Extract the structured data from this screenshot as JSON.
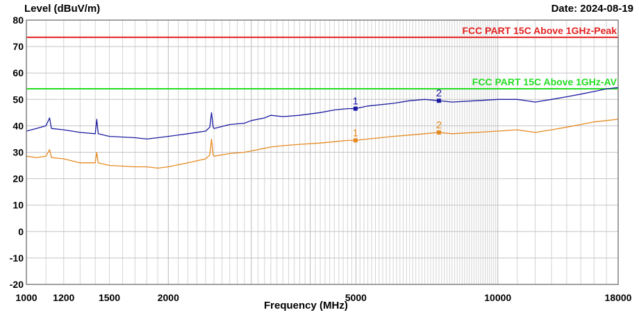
{
  "header": {
    "ylabel": "Level (dBuV/m)",
    "date": "Date: 2024-08-19"
  },
  "chart_data": {
    "type": "line",
    "title": "",
    "xlabel": "Frequency (MHz)",
    "ylabel": "Level (dBuV/m)",
    "xscale": "log",
    "xlim": [
      1000,
      18000
    ],
    "ylim": [
      -20,
      80
    ],
    "grid": true,
    "x_ticks": [
      1000,
      1200,
      1500,
      2000,
      5000,
      10000,
      18000
    ],
    "y_ticks": [
      80,
      70,
      60,
      50,
      40,
      30,
      20,
      10,
      0,
      -10,
      -20
    ],
    "limits": [
      {
        "name": "FCC PART 15C Above 1GHz-Peak",
        "value": 73.5,
        "color": "#e32020"
      },
      {
        "name": "FCC PART 15C Above 1GHz-AV",
        "value": 54,
        "color": "#22dd22"
      }
    ],
    "series": [
      {
        "color": "#1a1aa0",
        "x": [
          1000,
          1050,
          1100,
          1120,
          1130,
          1200,
          1300,
          1400,
          1410,
          1420,
          1500,
          1700,
          1800,
          1900,
          2000,
          2200,
          2400,
          2450,
          2470,
          2490,
          2500,
          2700,
          2900,
          3000,
          3200,
          3300,
          3500,
          3800,
          4200,
          4500,
          4800,
          4990,
          5300,
          6000,
          6500,
          7000,
          7500,
          8000,
          9000,
          10000,
          11000,
          12000,
          13000,
          14000,
          15000,
          16000,
          17000,
          18000
        ],
        "y": [
          38,
          39,
          40,
          43,
          39,
          38.5,
          37.5,
          37,
          42.5,
          37,
          36,
          35.5,
          35,
          35.5,
          36,
          37,
          38,
          39.5,
          45,
          39.5,
          39,
          40.5,
          41,
          42,
          43,
          44,
          43.5,
          44,
          45,
          46,
          46.5,
          46.5,
          47.5,
          48.5,
          49.5,
          50,
          49.5,
          49,
          49.5,
          50,
          50,
          49,
          50,
          51,
          52,
          53,
          54,
          54.5
        ]
      },
      {
        "color": "#e68a20",
        "x": [
          1000,
          1050,
          1100,
          1120,
          1130,
          1200,
          1300,
          1400,
          1410,
          1420,
          1500,
          1700,
          1800,
          1900,
          2000,
          2200,
          2400,
          2450,
          2470,
          2490,
          2500,
          2700,
          2900,
          3000,
          3200,
          3300,
          3500,
          3800,
          4200,
          4500,
          4800,
          4990,
          5300,
          6000,
          6500,
          7000,
          7500,
          8000,
          9000,
          10000,
          11000,
          12000,
          13000,
          14000,
          15000,
          16000,
          17000,
          18000
        ],
        "y": [
          28.5,
          28,
          28.5,
          31,
          28,
          27.5,
          26,
          26,
          30,
          26,
          25,
          24.5,
          24.5,
          24,
          24.5,
          26,
          27.5,
          29,
          35,
          29,
          28.5,
          29.5,
          30,
          30.5,
          31.5,
          32,
          32.5,
          33,
          33.5,
          34,
          34.5,
          34.5,
          35,
          36,
          36.5,
          37,
          37.5,
          37,
          37.5,
          38,
          38.5,
          37.5,
          38.5,
          39.5,
          40.5,
          41.5,
          42,
          42.5
        ]
      }
    ],
    "markers": [
      {
        "label": "1",
        "x": 4990,
        "y": 46.5,
        "color": "#1a1aa0"
      },
      {
        "label": "2",
        "x": 7500,
        "y": 49.5,
        "color": "#1a1aa0"
      },
      {
        "label": "1",
        "x": 4990,
        "y": 34.5,
        "color": "#e68a20"
      },
      {
        "label": "2",
        "x": 7500,
        "y": 37.5,
        "color": "#e68a20"
      }
    ]
  }
}
